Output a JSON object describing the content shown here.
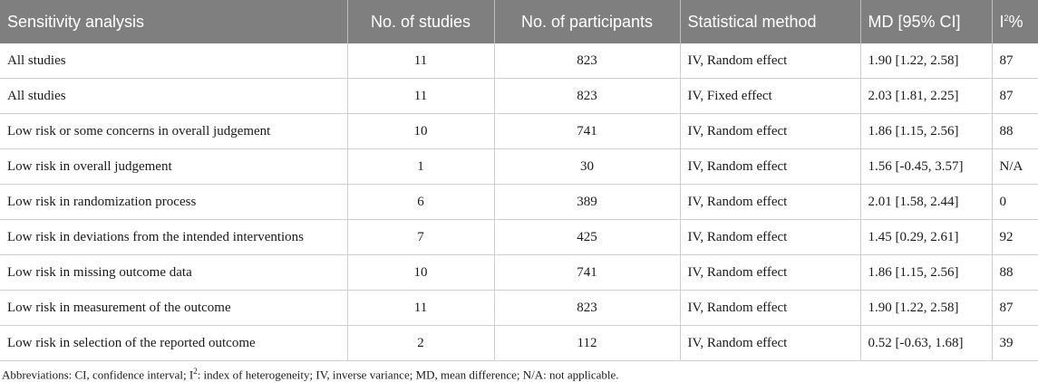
{
  "table": {
    "headers": [
      "Sensitivity analysis",
      "No. of studies",
      "No. of participants",
      "Statistical method",
      "MD [95% CI]",
      "I",
      "2",
      "%"
    ],
    "rows": [
      [
        "All studies",
        "11",
        "823",
        "IV, Random effect",
        "1.90 [1.22, 2.58]",
        "87"
      ],
      [
        "All studies",
        "11",
        "823",
        "IV, Fixed effect",
        "2.03 [1.81, 2.25]",
        "87"
      ],
      [
        "Low risk or some concerns in overall judgement",
        "10",
        "741",
        "IV, Random effect",
        "1.86 [1.15, 2.56]",
        "88"
      ],
      [
        "Low risk in overall judgement",
        "1",
        "30",
        "IV, Random effect",
        "1.56 [-0.45, 3.57]",
        "N/A"
      ],
      [
        "Low risk in randomization process",
        "6",
        "389",
        "IV, Random effect",
        "2.01 [1.58, 2.44]",
        "0"
      ],
      [
        "Low risk in deviations from the intended interventions",
        "7",
        "425",
        "IV, Random effect",
        "1.45 [0.29, 2.61]",
        "92"
      ],
      [
        "Low risk in missing outcome data",
        "10",
        "741",
        "IV, Random effect",
        "1.86 [1.15, 2.56]",
        "88"
      ],
      [
        "Low risk in measurement of the outcome",
        "11",
        "823",
        "IV, Random effect",
        "1.90 [1.22, 2.58]",
        "87"
      ],
      [
        "Low risk in selection of the reported outcome",
        "2",
        "112",
        "IV, Random effect",
        "0.52 [-0.63, 1.68]",
        "39"
      ]
    ]
  },
  "footnote": {
    "a": "Abbreviations: CI, confidence interval; I",
    "sup": "2",
    "b": ": index of heterogeneity; IV, inverse variance; MD, mean difference; N/A: not applicable."
  }
}
